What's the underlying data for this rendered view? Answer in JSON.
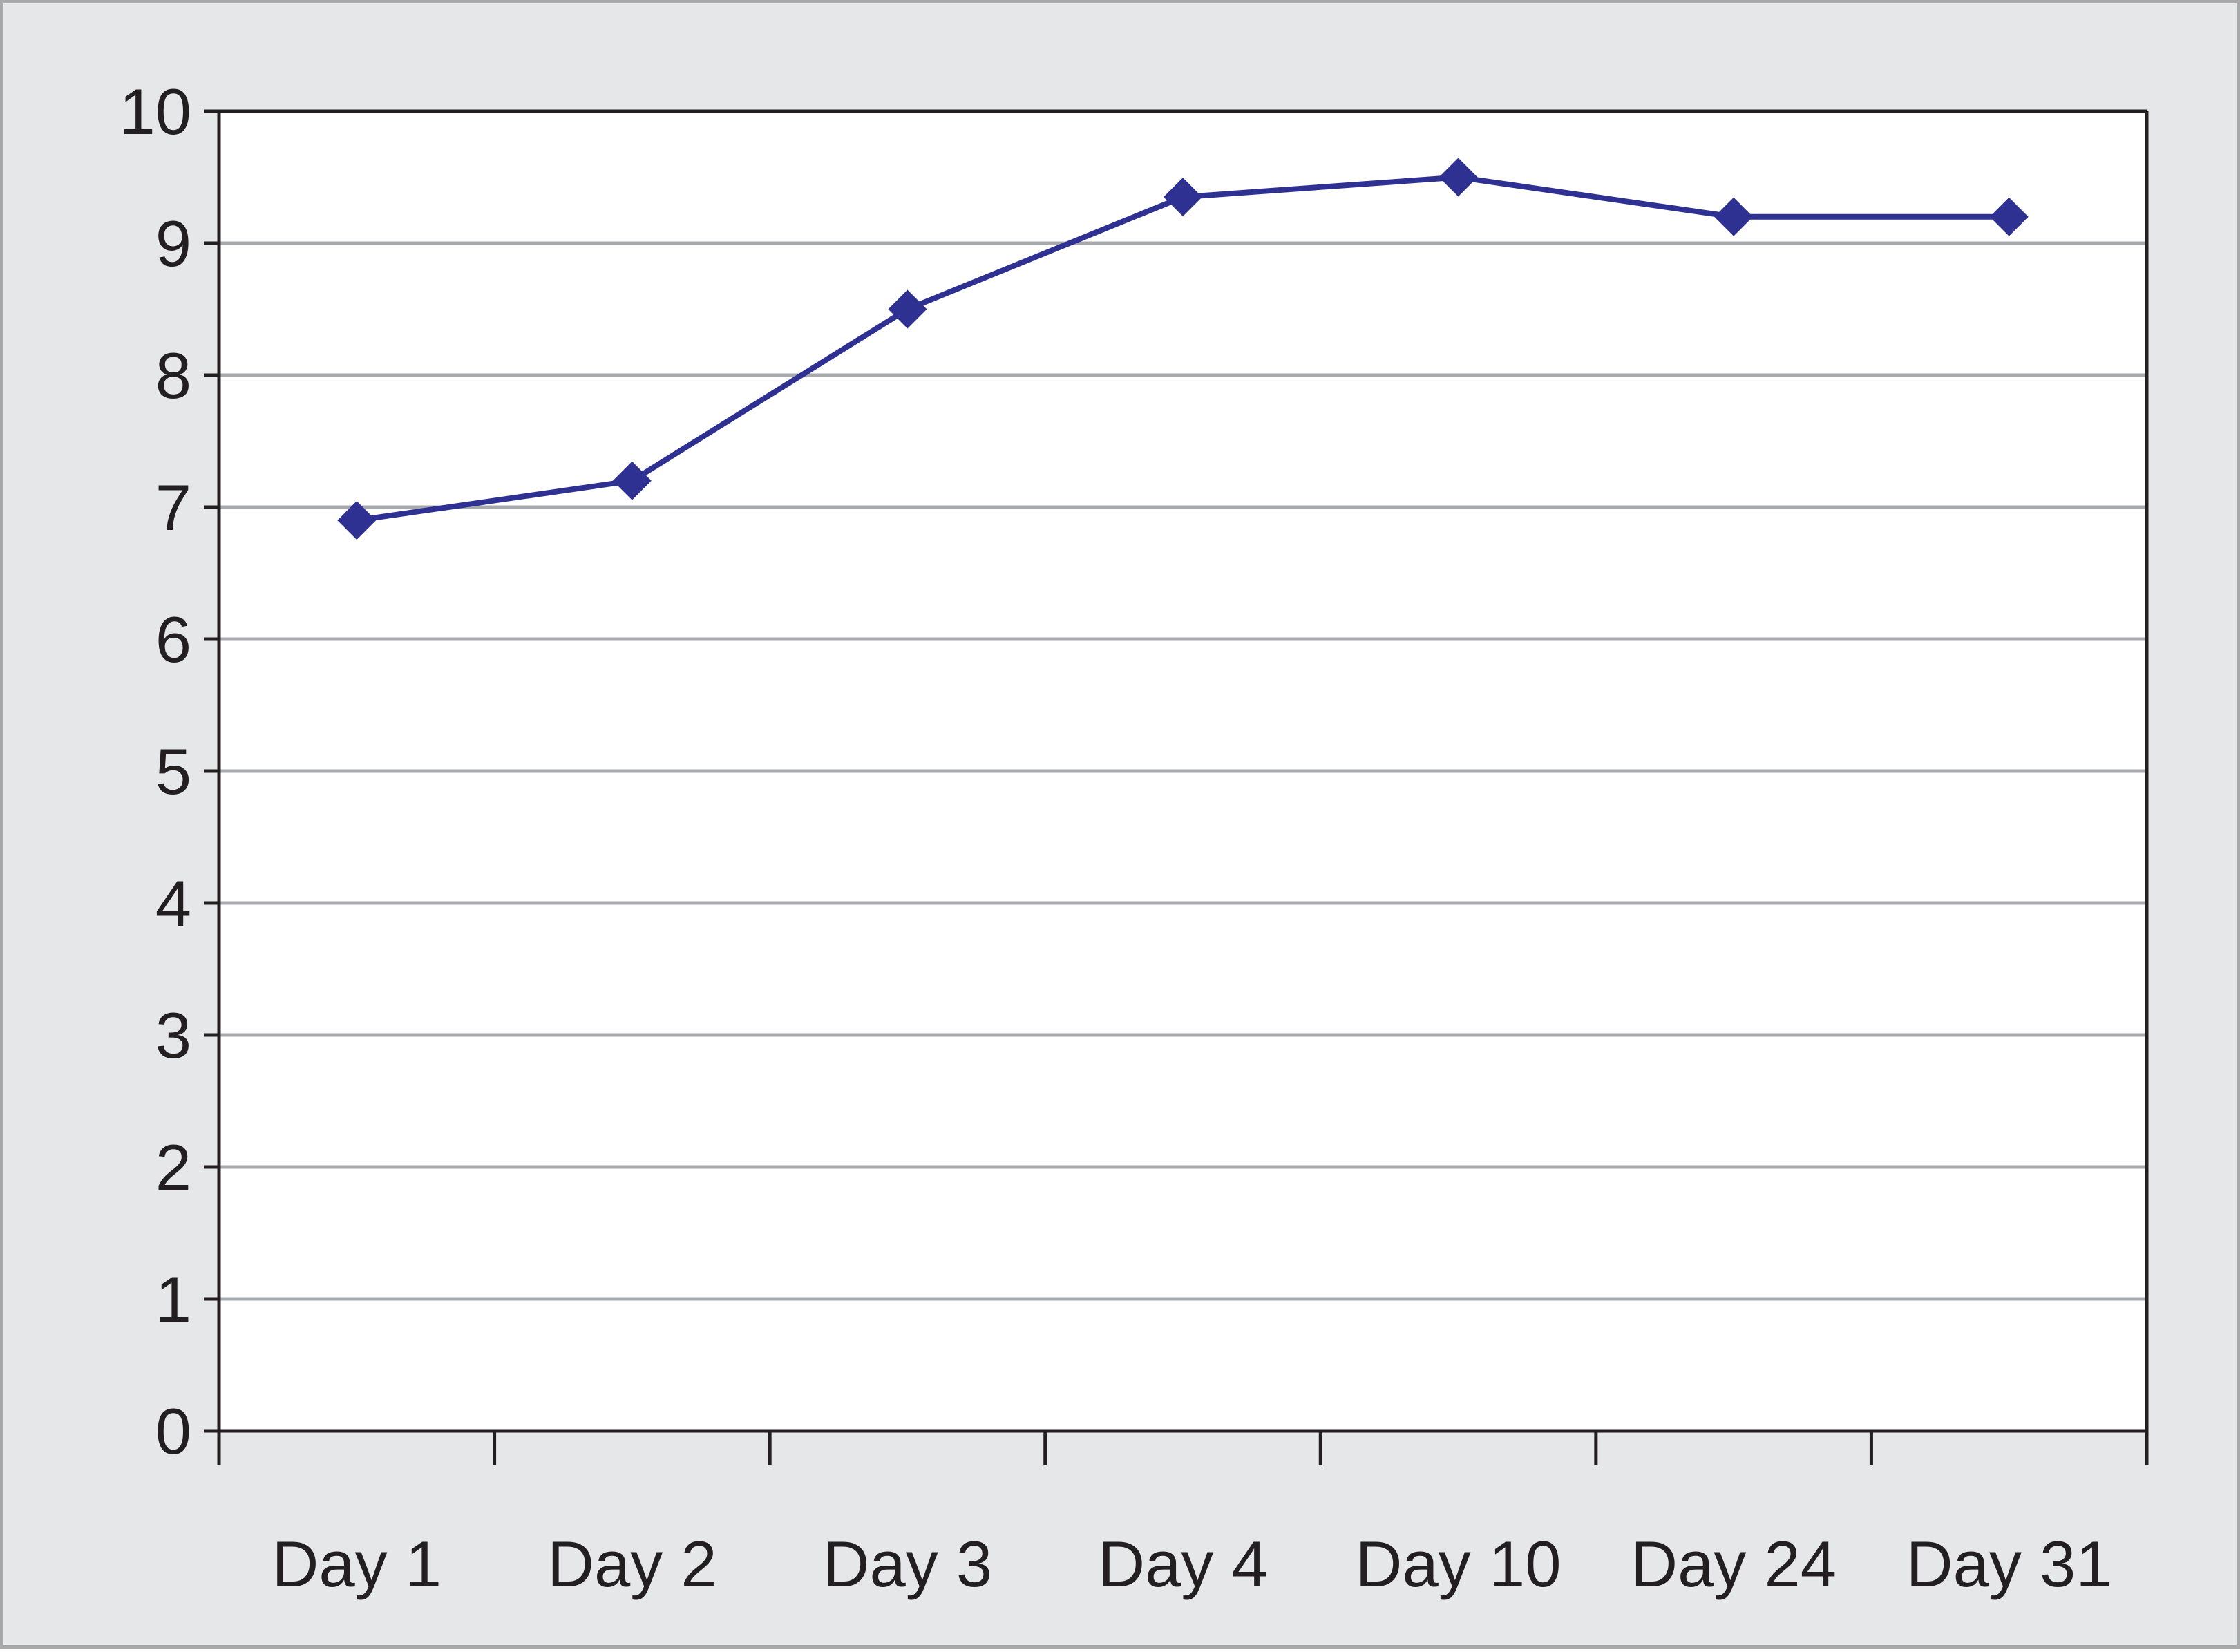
{
  "chart_data": {
    "type": "line",
    "title": "",
    "xlabel": "",
    "ylabel": "",
    "categories": [
      "Day 1",
      "Day 2",
      "Day 3",
      "Day 4",
      "Day 10",
      "Day 24",
      "Day 31"
    ],
    "series": [
      {
        "values": [
          6.9,
          7.2,
          8.5,
          9.35,
          9.5,
          9.2,
          9.2
        ],
        "color": "#2e3192",
        "marker": "diamond"
      }
    ],
    "ylim": [
      0,
      10
    ],
    "yticks": [
      0,
      1,
      2,
      3,
      4,
      5,
      6,
      7,
      8,
      9,
      10
    ],
    "grid": "horizontal",
    "legend": "none",
    "colors": {
      "frame_background": "#e6e7e9",
      "plot_background": "#ffffff",
      "gridline": "#a7a9ac",
      "axis": "#231f20"
    }
  }
}
